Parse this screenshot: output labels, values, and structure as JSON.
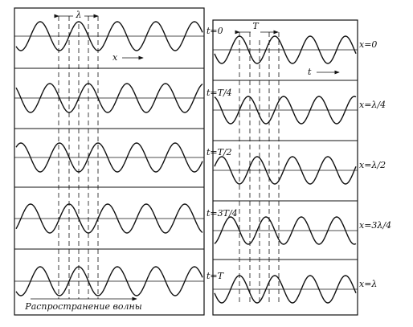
{
  "left_panel": {
    "wavelength_label": "λ",
    "axis_label": "x",
    "caption": "Распространение волны",
    "rows": [
      {
        "label": "t=0"
      },
      {
        "label": "t=T/4"
      },
      {
        "label": "t=T/2"
      },
      {
        "label": "t=3T/4"
      },
      {
        "label": "t=T"
      }
    ]
  },
  "right_panel": {
    "period_label": "T",
    "axis_label": "t",
    "rows": [
      {
        "label": "x=0"
      },
      {
        "label": "x=λ/4"
      },
      {
        "label": "x=λ/2"
      },
      {
        "label": "x=3λ/4"
      },
      {
        "label": "x=λ"
      }
    ]
  }
}
